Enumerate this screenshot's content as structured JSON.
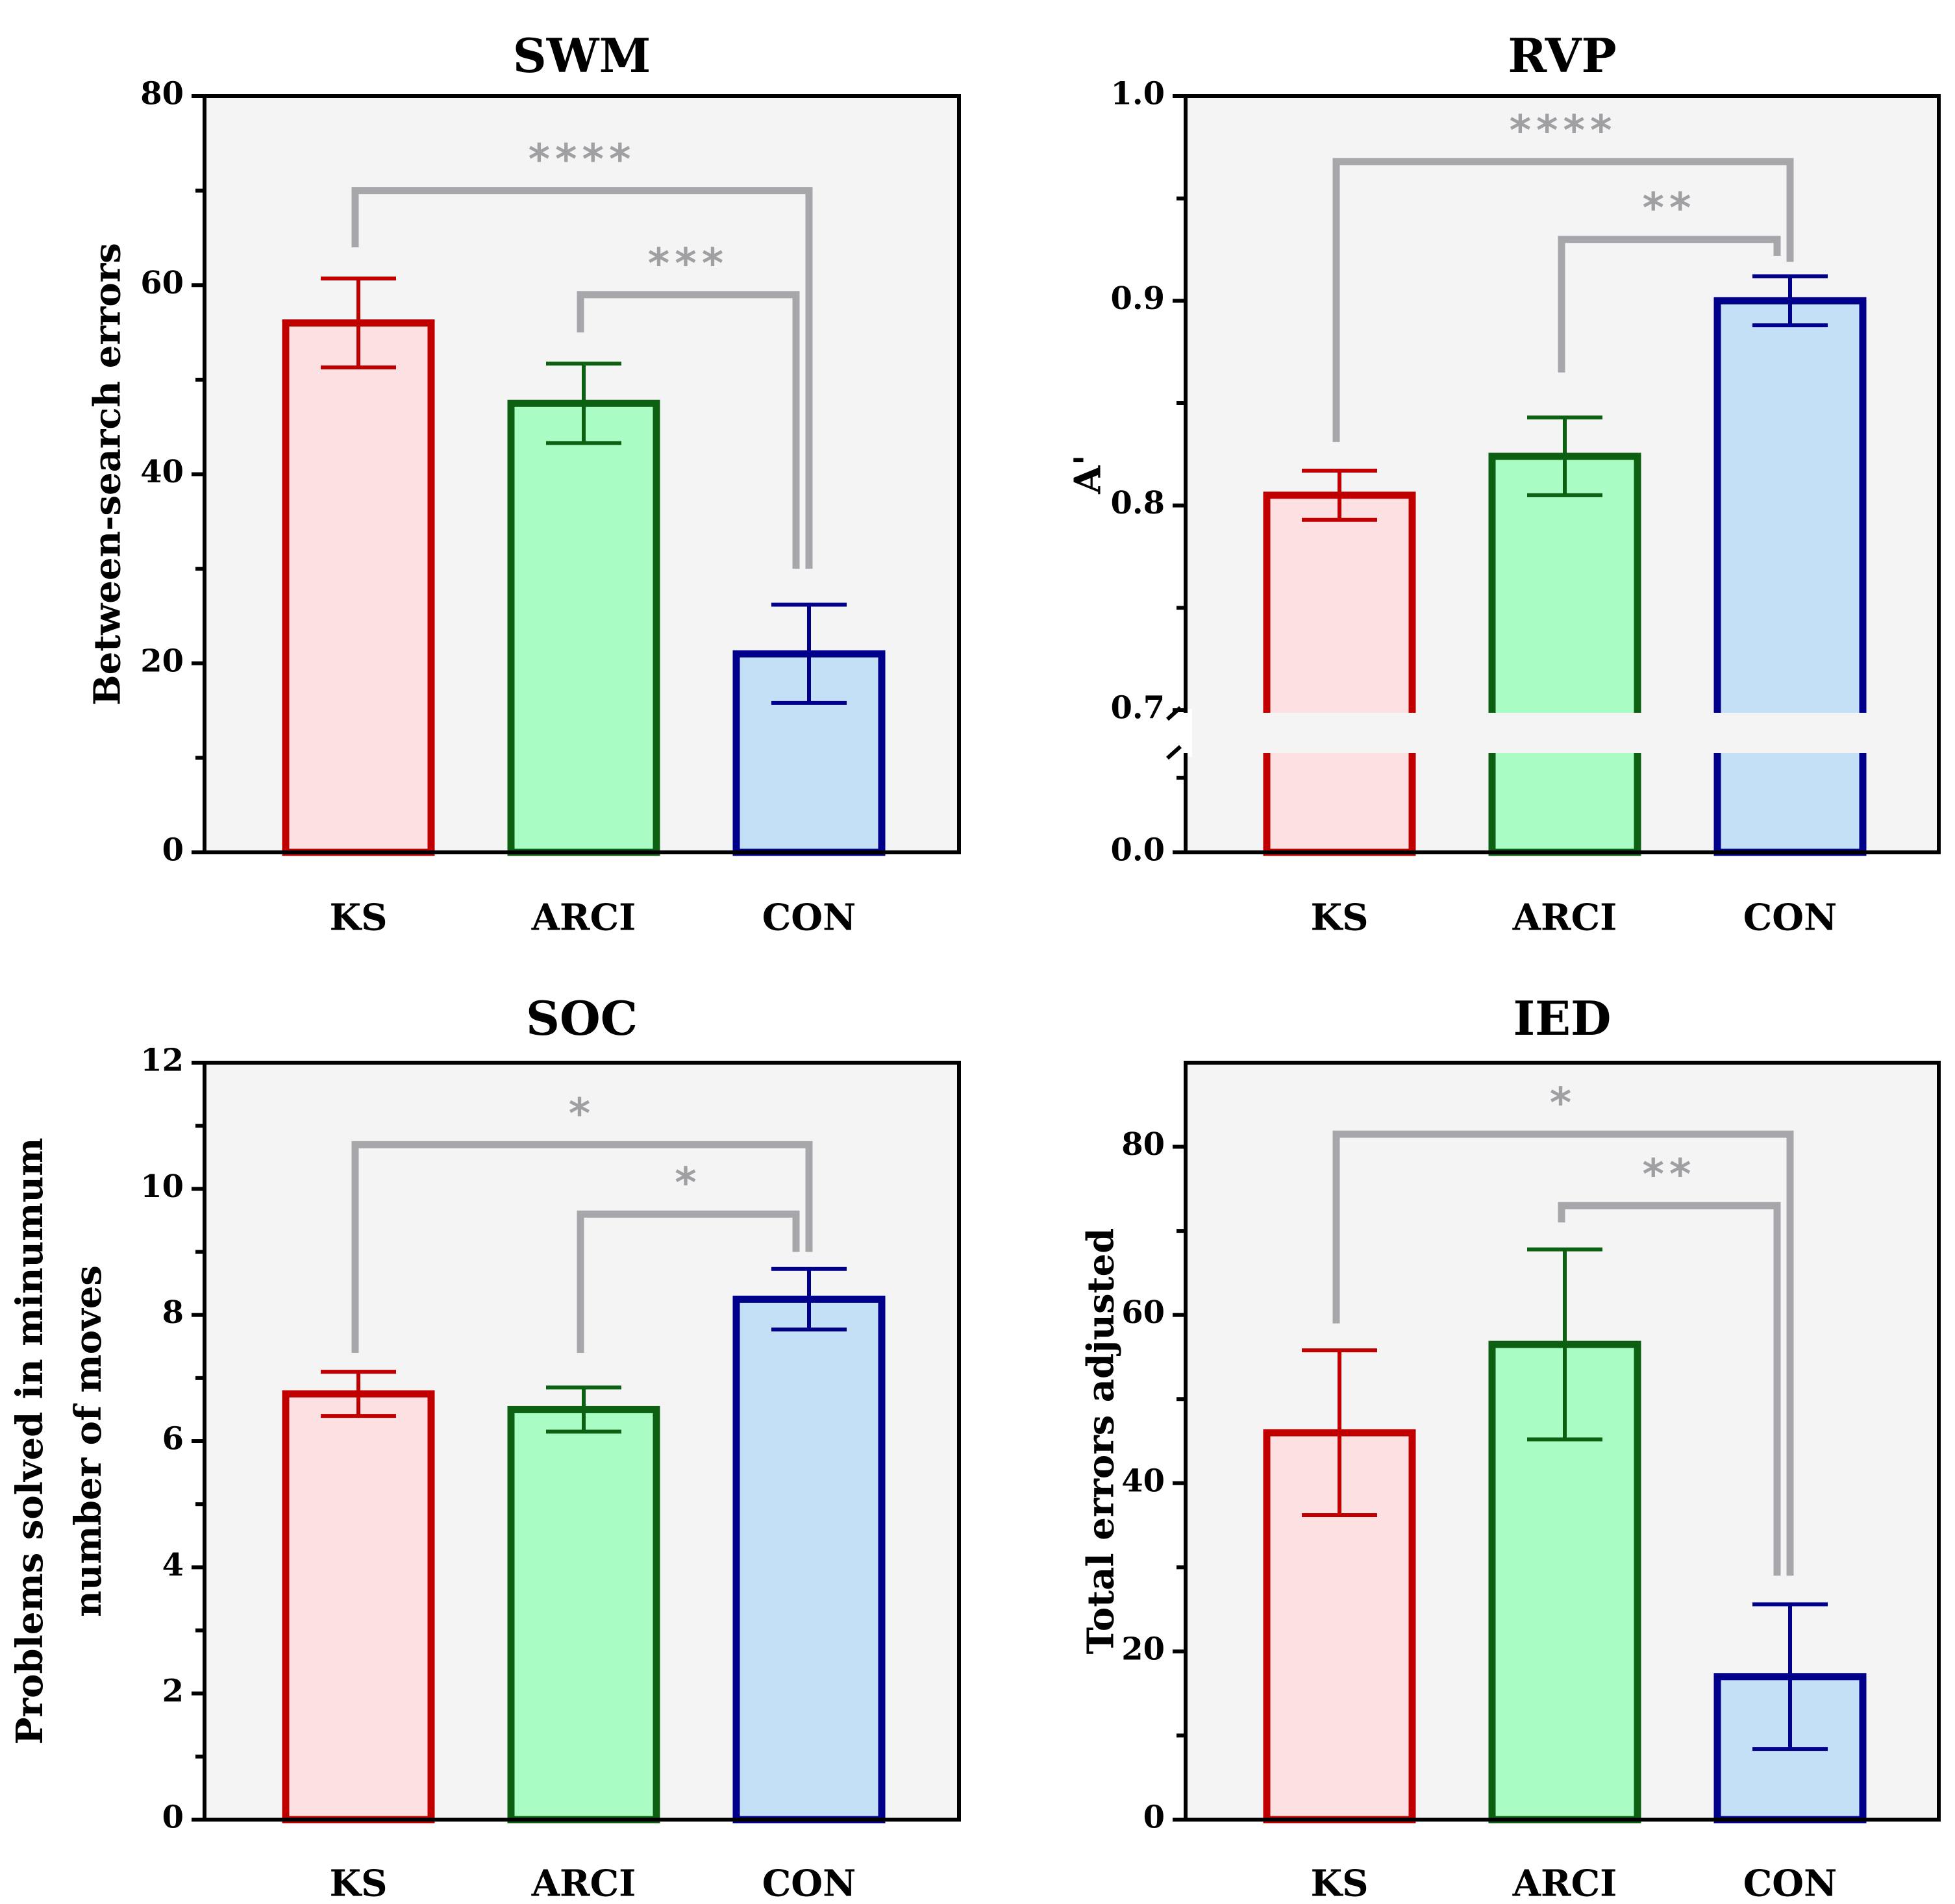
{
  "chart_data": [
    {
      "id": "swm",
      "type": "bar",
      "title": "SWM",
      "ylabel": "Between-search errors",
      "categories": [
        "KS",
        "ARCI",
        "CON"
      ],
      "values": [
        56,
        47.5,
        21
      ],
      "errors": [
        4.7,
        4.2,
        5.2
      ],
      "ylim": [
        0,
        80
      ],
      "major_ticks": [
        0,
        20,
        40,
        60,
        80
      ],
      "minor_ticks": [
        10,
        30,
        50,
        70
      ],
      "tick_labels": [
        "0",
        "20",
        "40",
        "60",
        "80"
      ],
      "annotations": [
        {
          "from": 1,
          "to": 2,
          "level": 59,
          "from_end": 55,
          "to_end": 30,
          "label": "***"
        },
        {
          "from": 0,
          "to": 2,
          "level": 70,
          "from_end": 64,
          "to_end": 30,
          "label": "****"
        }
      ]
    },
    {
      "id": "rvp",
      "type": "bar",
      "title": "RVP",
      "ylabel": "A'",
      "categories": [
        "KS",
        "ARCI",
        "CON"
      ],
      "values": [
        0.805,
        0.824,
        0.9
      ],
      "errors": [
        0.012,
        0.019,
        0.012
      ],
      "broken_axis": {
        "lower": [
          0,
          0.05
        ],
        "upper": [
          0.7,
          1.0
        ]
      },
      "major_ticks": [
        0.0,
        0.7,
        0.8,
        0.9,
        1.0
      ],
      "minor_ticks": [
        0.75,
        0.85,
        0.95
      ],
      "tick_labels": [
        "0.0",
        "0.7",
        "0.8",
        "0.9",
        "1.0"
      ],
      "annotations": [
        {
          "from": 1,
          "to": 2,
          "level": 0.93,
          "from_end": 0.865,
          "to_end": 0.922,
          "label": "**"
        },
        {
          "from": 0,
          "to": 2,
          "level": 0.968,
          "from_end": 0.831,
          "to_end": 0.919,
          "label": "****"
        }
      ]
    },
    {
      "id": "soc",
      "type": "bar",
      "title": "SOC",
      "ylabel": [
        "Problems solved in minumum",
        "number of moves"
      ],
      "categories": [
        "KS",
        "ARCI",
        "CON"
      ],
      "values": [
        6.75,
        6.5,
        8.25
      ],
      "errors": [
        0.35,
        0.35,
        0.48
      ],
      "ylim": [
        0,
        12
      ],
      "major_ticks": [
        0,
        2,
        4,
        6,
        8,
        10,
        12
      ],
      "minor_ticks": [
        1,
        3,
        5,
        7,
        9,
        11
      ],
      "tick_labels": [
        "0",
        "2",
        "4",
        "6",
        "8",
        "10",
        "12"
      ],
      "annotations": [
        {
          "from": 1,
          "to": 2,
          "level": 9.6,
          "from_end": 7.4,
          "to_end": 9.0,
          "label": "*"
        },
        {
          "from": 0,
          "to": 2,
          "level": 10.7,
          "from_end": 7.4,
          "to_end": 9.0,
          "label": "*"
        }
      ]
    },
    {
      "id": "ied",
      "type": "bar",
      "title": "IED",
      "ylabel": "Total errors adjusted",
      "categories": [
        "KS",
        "ARCI",
        "CON"
      ],
      "values": [
        46,
        56.5,
        17
      ],
      "errors": [
        9.8,
        11.3,
        8.6
      ],
      "ylim": [
        0,
        90
      ],
      "major_ticks": [
        0,
        20,
        40,
        60,
        80
      ],
      "minor_ticks": [
        10,
        30,
        50,
        70
      ],
      "tick_labels": [
        "0",
        "20",
        "40",
        "60",
        "80"
      ],
      "annotations": [
        {
          "from": 1,
          "to": 2,
          "level": 73,
          "from_end": 71,
          "to_end": 29,
          "label": "**"
        },
        {
          "from": 0,
          "to": 2,
          "level": 81.5,
          "from_end": 59,
          "to_end": 29,
          "label": "*"
        }
      ]
    }
  ],
  "colors": {
    "series": [
      {
        "stroke": "#c00000",
        "fill": "#fde0e2"
      },
      {
        "stroke": "#0d5f12",
        "fill": "#aafcc5"
      },
      {
        "stroke": "#00008b",
        "fill": "#c3e0f7"
      }
    ],
    "bracket": "#a7a7ab",
    "plot_background": "#f4f4f4"
  }
}
